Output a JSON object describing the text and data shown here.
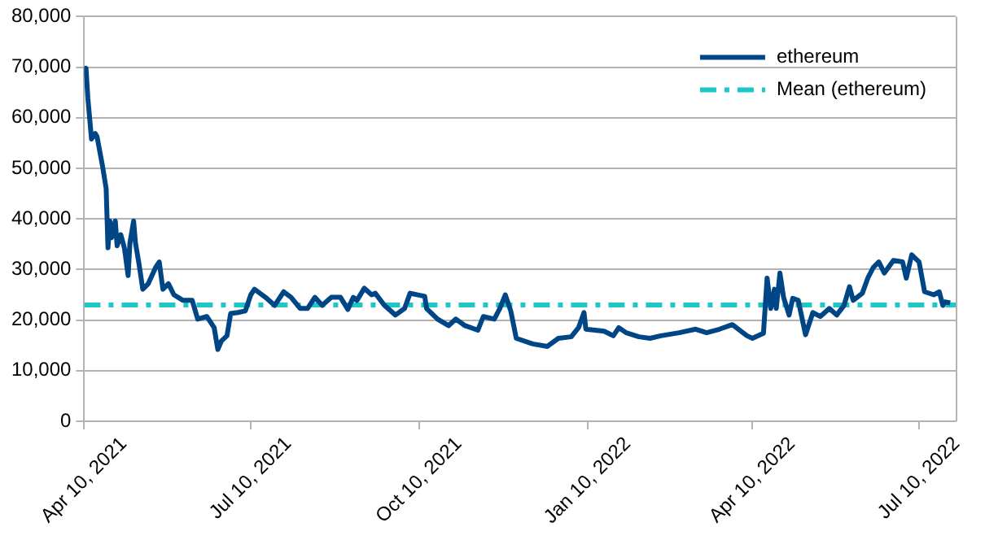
{
  "chart_data": {
    "type": "line",
    "xlim": [
      "2021-04-10",
      "2022-07-30"
    ],
    "xticks": [
      {
        "value": "2021-04-10",
        "label": "Apr 10, 2021"
      },
      {
        "value": "2021-07-10",
        "label": "Jul 10, 2021"
      },
      {
        "value": "2021-10-10",
        "label": "Oct 10, 2021"
      },
      {
        "value": "2022-01-10",
        "label": "Jan 10, 2022"
      },
      {
        "value": "2022-04-10",
        "label": "Apr 10, 2022"
      },
      {
        "value": "2022-07-10",
        "label": "Jul 10, 2022"
      }
    ],
    "ylim": [
      0,
      80000
    ],
    "yticks": [
      0,
      {
        "value": 10000,
        "label": "10,000"
      },
      {
        "value": 20000,
        "label": "20,000"
      },
      {
        "value": 30000,
        "label": "30,000"
      },
      {
        "value": 40000,
        "label": "40,000"
      },
      {
        "value": 50000,
        "label": "50,000"
      },
      {
        "value": 60000,
        "label": "60,000"
      },
      {
        "value": 70000,
        "label": "70,000"
      },
      {
        "value": 80000,
        "label": "80,000"
      }
    ],
    "grid": "y",
    "legend": "top right",
    "marker": "none",
    "series": [
      {
        "name": "ethereum",
        "color": "#004586",
        "line_style": "solid",
        "x": [
          "2021-04-10",
          "2021-04-11",
          "2021-04-12",
          "2021-04-14",
          "2021-04-16",
          "2021-04-17",
          "2021-04-20",
          "2021-04-22",
          "2021-04-23",
          "2021-04-24",
          "2021-04-25",
          "2021-04-27",
          "2021-04-28",
          "2021-04-30",
          "2021-05-02",
          "2021-05-04",
          "2021-05-05",
          "2021-05-07",
          "2021-05-08",
          "2021-05-10",
          "2021-05-12",
          "2021-05-15",
          "2021-05-19",
          "2021-05-21",
          "2021-05-23",
          "2021-05-26",
          "2021-05-29",
          "2021-06-03",
          "2021-06-08",
          "2021-06-11",
          "2021-06-16",
          "2021-06-20",
          "2021-06-22",
          "2021-06-24",
          "2021-06-27",
          "2021-06-29",
          "2021-07-03",
          "2021-07-07",
          "2021-07-10",
          "2021-07-12",
          "2021-07-18",
          "2021-07-23",
          "2021-07-28",
          "2021-08-01",
          "2021-08-06",
          "2021-08-10",
          "2021-08-14",
          "2021-08-18",
          "2021-08-23",
          "2021-08-28",
          "2021-09-01",
          "2021-09-04",
          "2021-09-06",
          "2021-09-10",
          "2021-09-14",
          "2021-09-16",
          "2021-09-21",
          "2021-09-27",
          "2021-10-02",
          "2021-10-05",
          "2021-10-13",
          "2021-10-14",
          "2021-10-20",
          "2021-10-26",
          "2021-10-30",
          "2021-11-04",
          "2021-11-11",
          "2021-11-14",
          "2021-11-20",
          "2021-11-23",
          "2021-11-26",
          "2021-11-29",
          "2021-12-02",
          "2021-12-11",
          "2021-12-19",
          "2021-12-25",
          "2022-01-01",
          "2022-01-05",
          "2022-01-08",
          "2022-01-09",
          "2022-01-19",
          "2022-01-24",
          "2022-01-27",
          "2022-01-31",
          "2022-02-07",
          "2022-02-13",
          "2022-02-19",
          "2022-03-01",
          "2022-03-10",
          "2022-03-16",
          "2022-03-23",
          "2022-03-30",
          "2022-04-07",
          "2022-04-10",
          "2022-04-16",
          "2022-04-18",
          "2022-04-20",
          "2022-04-22",
          "2022-04-23",
          "2022-04-25",
          "2022-04-27",
          "2022-04-30",
          "2022-05-02",
          "2022-05-05",
          "2022-05-09",
          "2022-05-13",
          "2022-05-17",
          "2022-05-22",
          "2022-05-26",
          "2022-05-30",
          "2022-06-02",
          "2022-06-04",
          "2022-06-09",
          "2022-06-12",
          "2022-06-15",
          "2022-06-18",
          "2022-06-21",
          "2022-06-26",
          "2022-07-01",
          "2022-07-03",
          "2022-07-06",
          "2022-07-10",
          "2022-07-13",
          "2022-07-18",
          "2022-07-21",
          "2022-07-23",
          "2022-07-24",
          "2022-07-27"
        ],
        "values": [
          68200,
          69800,
          63900,
          55800,
          56900,
          56300,
          50500,
          46000,
          34300,
          39600,
          36300,
          39600,
          34700,
          36900,
          34200,
          28800,
          35300,
          39600,
          35300,
          31000,
          26100,
          27200,
          30400,
          31500,
          26100,
          27200,
          25000,
          23900,
          23900,
          20200,
          20700,
          18500,
          14200,
          15900,
          16900,
          21300,
          21500,
          21800,
          25000,
          26100,
          24500,
          22900,
          25600,
          24500,
          22300,
          22300,
          24500,
          22900,
          24500,
          24500,
          22100,
          24500,
          23900,
          26300,
          25000,
          25300,
          22900,
          21000,
          22300,
          25300,
          24700,
          22300,
          20200,
          18900,
          20200,
          18900,
          18000,
          20700,
          20200,
          22300,
          25000,
          21800,
          16400,
          15300,
          14800,
          16400,
          16700,
          18500,
          21500,
          18200,
          17800,
          16900,
          18500,
          17500,
          16700,
          16400,
          16900,
          17500,
          18200,
          17500,
          18200,
          19100,
          16900,
          16400,
          17400,
          28300,
          22300,
          26100,
          22300,
          29300,
          24500,
          21000,
          24300,
          23900,
          17100,
          21500,
          20700,
          22300,
          21000,
          22900,
          26600,
          23900,
          25300,
          28300,
          30400,
          31500,
          29300,
          31800,
          31500,
          28300,
          32900,
          31500,
          25600,
          25000,
          25600,
          22900,
          23600,
          23400
        ]
      },
      {
        "name": "Mean (ethereum)",
        "color": "#1fc6c6",
        "line_style": "dashed",
        "x": [
          "2021-04-10",
          "2022-07-30"
        ],
        "values": [
          23000,
          23000
        ]
      }
    ]
  }
}
